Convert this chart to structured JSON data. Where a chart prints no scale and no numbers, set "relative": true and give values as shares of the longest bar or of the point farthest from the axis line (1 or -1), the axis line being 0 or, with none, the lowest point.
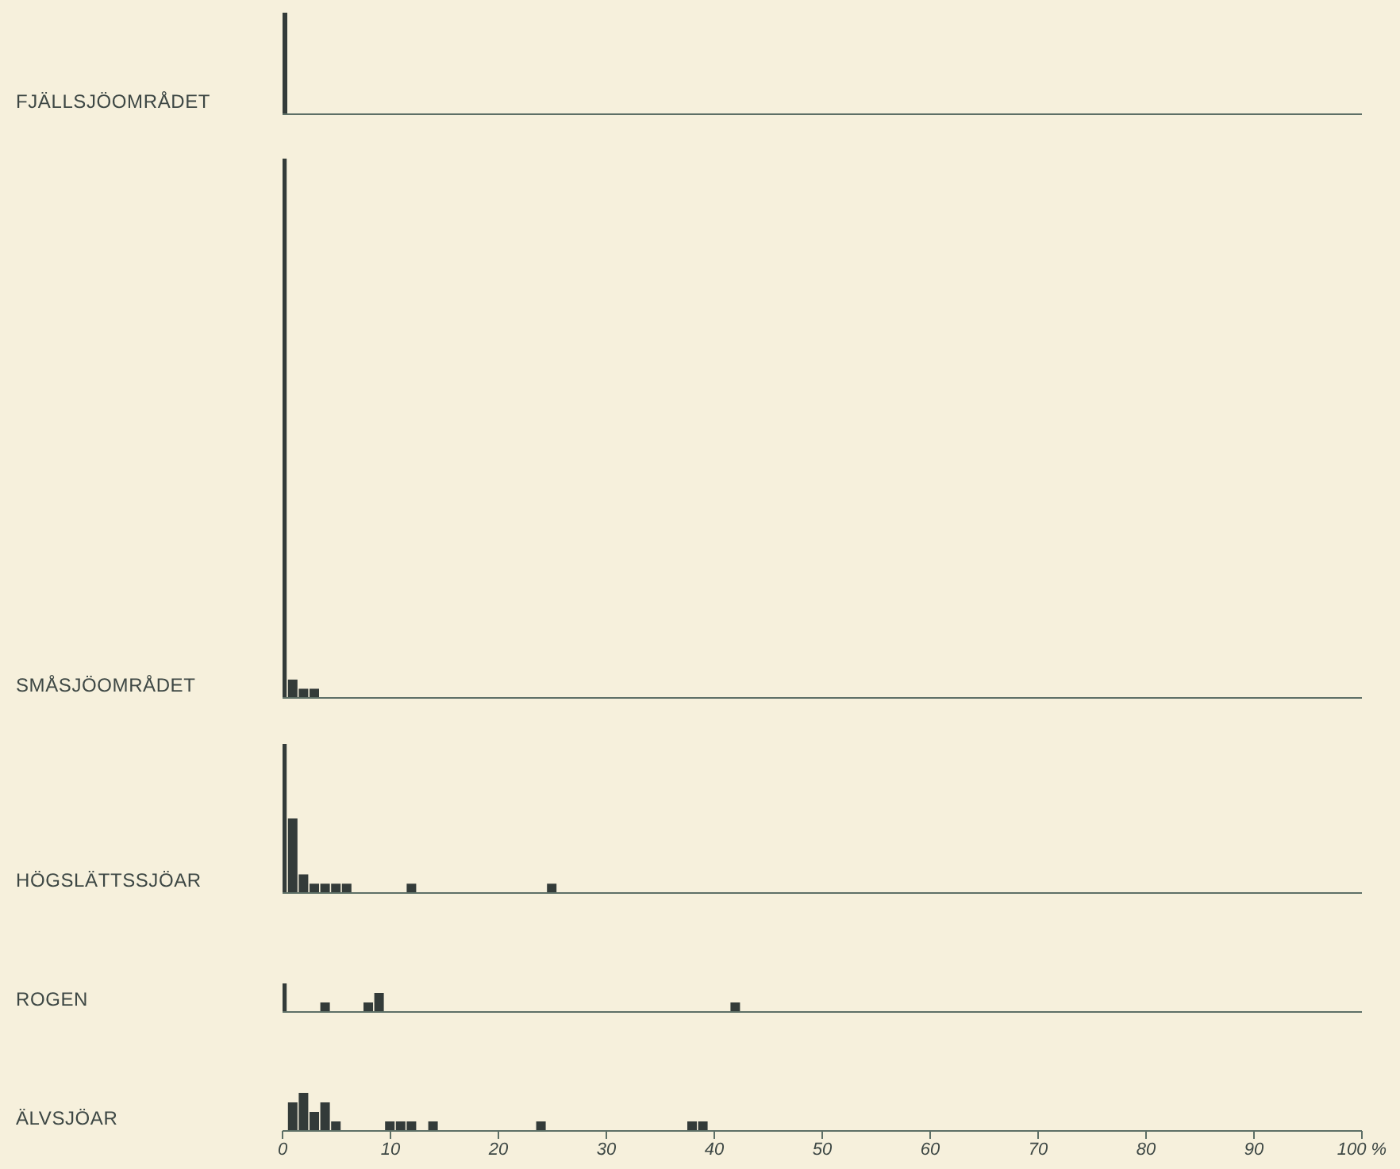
{
  "chart_data": [
    {
      "type": "bar",
      "ylabel": "FJÄLLSJÖOMRÅDET",
      "relative": true,
      "xlim": [
        0,
        100
      ],
      "xticks": [
        0,
        10,
        20,
        30,
        40,
        50,
        60,
        70,
        80,
        90,
        100
      ],
      "tick_labels": false,
      "series": [
        {
          "color": "#333b39",
          "x": [
            0
          ],
          "values": [
            1
          ]
        }
      ]
    },
    {
      "type": "bar",
      "ylabel": "SMÅSJÖOMRÅDET",
      "relative": true,
      "xlim": [
        0,
        100
      ],
      "xticks": [
        0,
        10,
        20,
        30,
        40,
        50,
        60,
        70,
        80,
        90,
        100
      ],
      "tick_labels": false,
      "series": [
        {
          "color": "#333b39",
          "x": [
            0,
            1,
            2,
            3
          ],
          "values": [
            1,
            0.034,
            0.017,
            0.017
          ]
        }
      ]
    },
    {
      "type": "bar",
      "ylabel": "HÖGSLÄTTSSJÖAR",
      "relative": true,
      "xlim": [
        0,
        100
      ],
      "xticks": [
        0,
        10,
        20,
        30,
        40,
        50,
        60,
        70,
        80,
        90,
        100
      ],
      "tick_labels": false,
      "series": [
        {
          "color": "#333b39",
          "x": [
            0,
            1,
            2,
            3,
            4,
            5,
            6,
            12,
            25
          ],
          "values": [
            1,
            0.5,
            0.125,
            0.0625,
            0.0625,
            0.0625,
            0.0625,
            0.0625,
            0.0625
          ]
        }
      ]
    },
    {
      "type": "bar",
      "ylabel": "ROGEN",
      "relative": true,
      "xlim": [
        0,
        100
      ],
      "xticks": [
        0,
        10,
        20,
        30,
        40,
        50,
        60,
        70,
        80,
        90,
        100
      ],
      "tick_labels": false,
      "series": [
        {
          "color": "#333b39",
          "x": [
            0,
            4,
            8,
            9,
            42
          ],
          "values": [
            1,
            0.333,
            0.333,
            0.667,
            0.333
          ]
        }
      ]
    },
    {
      "type": "bar",
      "ylabel": "ÄLVSJÖAR",
      "relative": true,
      "xlim": [
        0,
        100
      ],
      "xticks": [
        0,
        10,
        20,
        30,
        40,
        50,
        60,
        70,
        80,
        90,
        {
          "value": 100,
          "label": "100 %"
        }
      ],
      "tick_labels": "x",
      "series": [
        {
          "color": "#333b39",
          "x": [
            1,
            2,
            3,
            4,
            5,
            10,
            11,
            12,
            14,
            24,
            38,
            39
          ],
          "values": [
            0.75,
            1,
            0.5,
            0.75,
            0.25,
            0.25,
            0.25,
            0.25,
            0.25,
            0.25,
            0.25,
            0.25
          ]
        }
      ]
    }
  ]
}
